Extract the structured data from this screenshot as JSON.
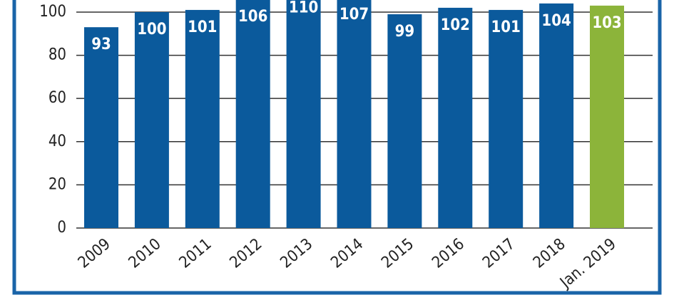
{
  "chart_data": {
    "type": "bar",
    "categories": [
      "2009",
      "2010",
      "2011",
      "2012",
      "2013",
      "2014",
      "2015",
      "2016",
      "2017",
      "2018",
      "Jan. 2019"
    ],
    "values": [
      93,
      100,
      101,
      106,
      110,
      107,
      99,
      102,
      101,
      104,
      103
    ],
    "colors": [
      "#0b5a9c",
      "#0b5a9c",
      "#0b5a9c",
      "#0b5a9c",
      "#0b5a9c",
      "#0b5a9c",
      "#0b5a9c",
      "#0b5a9c",
      "#0b5a9c",
      "#0b5a9c",
      "#8cb43a"
    ],
    "ylim": [
      0,
      105.6
    ],
    "yticks": [
      0,
      20,
      40,
      60,
      80,
      100
    ],
    "grid": true
  }
}
